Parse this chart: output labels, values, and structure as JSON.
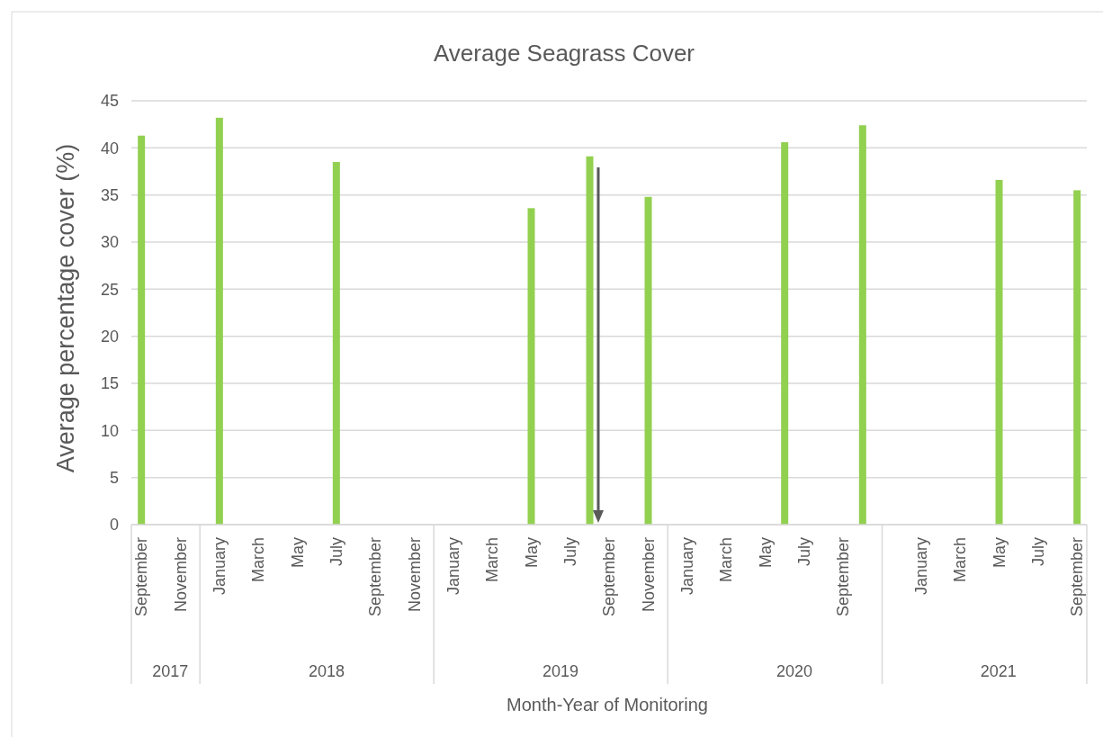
{
  "chart_data": {
    "type": "bar",
    "title": "Average Seagrass Cover",
    "xlabel": "Month-Year of Monitoring",
    "ylabel": "Average percentage cover (%)",
    "x": [
      "2017-09",
      "2018-01",
      "2018-07",
      "2019-05",
      "2019-08",
      "2019-11",
      "2020-06",
      "2020-10",
      "2021-05",
      "2021-09"
    ],
    "values": [
      41.3,
      43.2,
      38.5,
      33.6,
      39.1,
      34.8,
      40.6,
      42.4,
      36.6,
      35.5
    ],
    "color": "#92d050",
    "xlim": [
      "2017-08-16",
      "2021-09-16"
    ],
    "xticks": [
      {
        "value": "2017-09",
        "label": "September"
      },
      {
        "value": "2017-11",
        "label": "November"
      },
      {
        "value": "2018-01",
        "label": "January"
      },
      {
        "value": "2018-03",
        "label": "March"
      },
      {
        "value": "2018-05",
        "label": "May"
      },
      {
        "value": "2018-07",
        "label": "July"
      },
      {
        "value": "2018-09",
        "label": "September"
      },
      {
        "value": "2018-11",
        "label": "November"
      },
      {
        "value": "2019-01",
        "label": "January"
      },
      {
        "value": "2019-03",
        "label": "March"
      },
      {
        "value": "2019-05",
        "label": "May"
      },
      {
        "value": "2019-07",
        "label": "July"
      },
      {
        "value": "2019-09",
        "label": "September"
      },
      {
        "value": "2019-11",
        "label": "November"
      },
      {
        "value": "2020-01",
        "label": "January"
      },
      {
        "value": "2020-03",
        "label": "March"
      },
      {
        "value": "2020-05",
        "label": "May"
      },
      {
        "value": "2020-07",
        "label": "July"
      },
      {
        "value": "2020-09",
        "label": "September"
      },
      {
        "value": "2021-01",
        "label": "January"
      },
      {
        "value": "2021-03",
        "label": "March"
      },
      {
        "value": "2021-05",
        "label": "May"
      },
      {
        "value": "2021-07",
        "label": "July"
      },
      {
        "value": "2021-09",
        "label": "September"
      }
    ],
    "x2lim": [
      "2017-08-16",
      "2021-09-16"
    ],
    "x2ticks": [
      {
        "value": "2017-10-16",
        "label": "2017"
      },
      {
        "value": "2018-06-16",
        "label": "2018"
      },
      {
        "value": "2019-06-16",
        "label": "2019"
      },
      {
        "value": "2020-06-16",
        "label": "2020"
      },
      {
        "value": "2021-04-30",
        "label": "2021"
      }
    ],
    "ylim": [
      0,
      45
    ],
    "yticks": [
      0,
      5,
      10,
      15,
      20,
      25,
      30,
      35,
      40,
      45
    ],
    "grid": "y"
  }
}
